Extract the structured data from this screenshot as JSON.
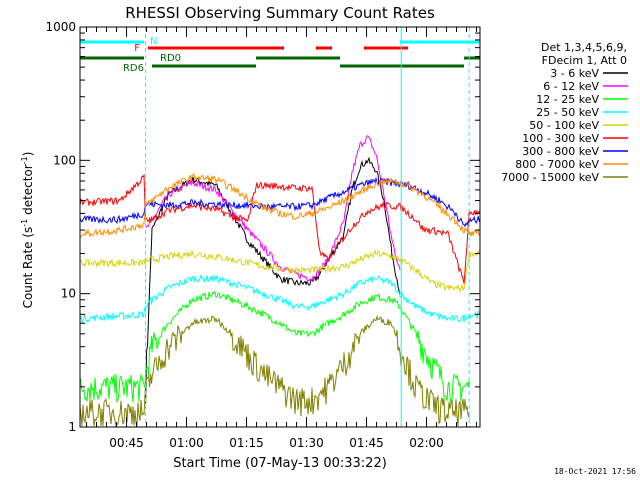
{
  "chart_data": {
    "type": "line",
    "title": "RHESSI Observing Summary Count Rates",
    "xlabel": "Start Time (07-May-13 00:33:22)",
    "ylabel_main": "Count Rate (s",
    "ylabel_sup1": "-1",
    "ylabel_mid": " detector",
    "ylabel_sup2": "-1",
    "ylabel_end": ")",
    "yscale": "log",
    "ylim": [
      1,
      1000
    ],
    "xlim_minutes": [
      0,
      100
    ],
    "y_ticks": [
      {
        "value": 1,
        "label": "1"
      },
      {
        "value": 10,
        "label": "10"
      },
      {
        "value": 100,
        "label": "100"
      },
      {
        "value": 1000,
        "label": "1000"
      }
    ],
    "x_ticks": [
      {
        "minute": 11.63,
        "label": "00:45"
      },
      {
        "minute": 26.63,
        "label": "01:00"
      },
      {
        "minute": 41.63,
        "label": "01:15"
      },
      {
        "minute": 56.63,
        "label": "01:30"
      },
      {
        "minute": 71.63,
        "label": "01:45"
      },
      {
        "minute": 86.63,
        "label": "02:00"
      }
    ],
    "legend": {
      "placement": "right",
      "header": [
        "Det 1,3,4,5,6,9,",
        "FDecim 1, Att 0"
      ],
      "entries": [
        {
          "name": "3 - 6 keV",
          "color": "#000000"
        },
        {
          "name": "6 - 12 keV",
          "color": "#ff00ff"
        },
        {
          "name": "12 - 25 keV",
          "color": "#00ff00"
        },
        {
          "name": "25 - 50 keV",
          "color": "#00ffff"
        },
        {
          "name": "50 - 100 keV",
          "color": "#d4d400"
        },
        {
          "name": "100 - 300 keV",
          "color": "#ff0000"
        },
        {
          "name": "300 - 800 keV",
          "color": "#0000ff"
        },
        {
          "name": "800 - 7000 keV",
          "color": "#ff8c00"
        },
        {
          "name": "7000 - 15000 keV",
          "color": "#808000"
        }
      ]
    },
    "flag_bars": [
      {
        "label": "N",
        "color": "#00ffff",
        "segments": [
          [
            0,
            16
          ],
          [
            80,
            100
          ]
        ]
      },
      {
        "label": "F",
        "color": "#ff0000",
        "segments": [
          [
            17,
            51
          ],
          [
            59,
            63
          ],
          [
            71,
            82
          ]
        ]
      },
      {
        "label": "RD0",
        "color": "#006400",
        "segments": [
          [
            0,
            16
          ],
          [
            44,
            65
          ],
          [
            96,
            100
          ]
        ]
      },
      {
        "label": "RD6",
        "color": "#006400",
        "segments": [
          [
            18,
            44
          ],
          [
            65,
            96
          ]
        ]
      }
    ],
    "night_lines_minutes": [
      16.4,
      80.3,
      97.3
    ],
    "series": [
      {
        "name": "3 - 6 keV",
        "color": "#000000",
        "x": [
          0,
          15.9,
          16.4,
          18,
          22,
          28,
          34,
          38,
          42,
          46,
          50,
          54,
          58,
          60,
          62,
          64,
          66,
          68,
          70,
          72,
          74,
          76,
          78,
          80
        ],
        "y": [
          null,
          null,
          2,
          30,
          55,
          72,
          65,
          40,
          25,
          18,
          13,
          12,
          12,
          14,
          18,
          22,
          28,
          60,
          90,
          100,
          85,
          50,
          20,
          10
        ]
      },
      {
        "name": "6 - 12 keV",
        "color": "#ff00ff",
        "x": [
          16.4,
          18,
          22,
          28,
          34,
          38,
          42,
          46,
          50,
          54,
          58,
          60,
          62,
          64,
          66,
          68,
          70,
          72,
          74,
          76,
          78,
          80
        ],
        "y": [
          30,
          35,
          55,
          68,
          60,
          42,
          30,
          22,
          16,
          14,
          13,
          15,
          18,
          25,
          35,
          80,
          130,
          150,
          110,
          55,
          25,
          15
        ]
      },
      {
        "name": "12 - 25 keV",
        "color": "#00ff00",
        "x": [
          0,
          16,
          16.4,
          18,
          22,
          28,
          34,
          38,
          42,
          46,
          50,
          54,
          58,
          62,
          66,
          70,
          74,
          78,
          80,
          84,
          88,
          92,
          96,
          97.3
        ],
        "y": [
          2,
          2,
          2.5,
          4,
          6,
          9,
          10,
          9,
          8,
          7,
          6,
          5,
          5,
          6,
          7,
          8.5,
          9.5,
          9,
          8,
          5,
          3,
          2,
          2,
          2
        ]
      },
      {
        "name": "25 - 50 keV",
        "color": "#00ffff",
        "x": [
          0,
          16,
          16.4,
          18,
          22,
          28,
          34,
          38,
          42,
          46,
          50,
          54,
          58,
          62,
          66,
          70,
          74,
          78,
          80,
          84,
          88,
          92,
          96,
          97.3,
          100
        ],
        "y": [
          6.5,
          7,
          8,
          9,
          11,
          13,
          13,
          12,
          11,
          10,
          9,
          8,
          8,
          9,
          10,
          12,
          13,
          12,
          10,
          8,
          7,
          6.5,
          6.5,
          7,
          7
        ]
      },
      {
        "name": "50 - 100 keV",
        "color": "#d4d400",
        "x": [
          0,
          16,
          16.4,
          18,
          22,
          28,
          34,
          38,
          42,
          46,
          50,
          54,
          58,
          62,
          66,
          70,
          74,
          78,
          80,
          84,
          88,
          92,
          96,
          97.3,
          100
        ],
        "y": [
          17,
          17,
          17.5,
          18,
          19,
          20,
          19,
          18,
          17,
          16,
          15.5,
          15,
          15,
          15.5,
          16,
          18,
          20,
          19,
          18,
          15,
          12,
          11,
          11,
          20,
          20
        ]
      },
      {
        "name": "100 - 300 keV",
        "color": "#ff0000",
        "x": [
          0,
          10,
          16,
          16.4,
          18,
          22,
          28,
          34,
          38,
          42,
          44,
          46,
          50,
          54,
          58,
          60,
          62,
          64,
          68,
          72,
          76,
          80,
          84,
          86,
          88,
          92,
          96,
          97.3,
          100
        ],
        "y": [
          48,
          50,
          75,
          35,
          36,
          42,
          46,
          43,
          38,
          35,
          65,
          65,
          64,
          62,
          62,
          20,
          18,
          22,
          32,
          42,
          46,
          45,
          36,
          30,
          30,
          28,
          12,
          40,
          42
        ]
      },
      {
        "name": "300 - 800 keV",
        "color": "#0000ff",
        "x": [
          0,
          10,
          16,
          16.4,
          18,
          22,
          28,
          34,
          38,
          42,
          46,
          50,
          54,
          58,
          62,
          66,
          70,
          74,
          78,
          82,
          86,
          90,
          94,
          96,
          97.3,
          100
        ],
        "y": [
          36,
          36,
          40,
          47,
          47,
          46,
          48,
          47,
          46,
          46,
          45,
          45,
          45,
          46,
          52,
          58,
          65,
          70,
          68,
          65,
          58,
          50,
          40,
          32,
          35,
          36
        ]
      },
      {
        "name": "800 - 7000 keV",
        "color": "#ff8c00",
        "x": [
          0,
          10,
          16,
          16.4,
          18,
          22,
          28,
          34,
          38,
          42,
          46,
          50,
          54,
          58,
          62,
          66,
          70,
          74,
          78,
          82,
          86,
          90,
          94,
          96,
          97.3,
          100
        ],
        "y": [
          28,
          30,
          33,
          45,
          50,
          62,
          75,
          72,
          62,
          52,
          44,
          40,
          38,
          40,
          44,
          50,
          58,
          67,
          70,
          65,
          55,
          44,
          35,
          30,
          28,
          28
        ]
      },
      {
        "name": "7000 - 15000 keV",
        "color": "#808000",
        "x": [
          0,
          16,
          16.4,
          18,
          22,
          28,
          34,
          38,
          42,
          46,
          50,
          54,
          58,
          62,
          66,
          70,
          74,
          78,
          80,
          84,
          88,
          92,
          96,
          97.3
        ],
        "y": [
          1.3,
          1.3,
          1.8,
          2.5,
          4,
          6,
          6.5,
          5,
          3.5,
          2.5,
          2,
          1.6,
          1.6,
          2,
          3,
          5,
          6.5,
          6,
          4,
          2,
          1.5,
          1.3,
          1.3,
          1.3
        ]
      }
    ]
  },
  "footer_timestamp": "18-Oct-2021 17:56"
}
